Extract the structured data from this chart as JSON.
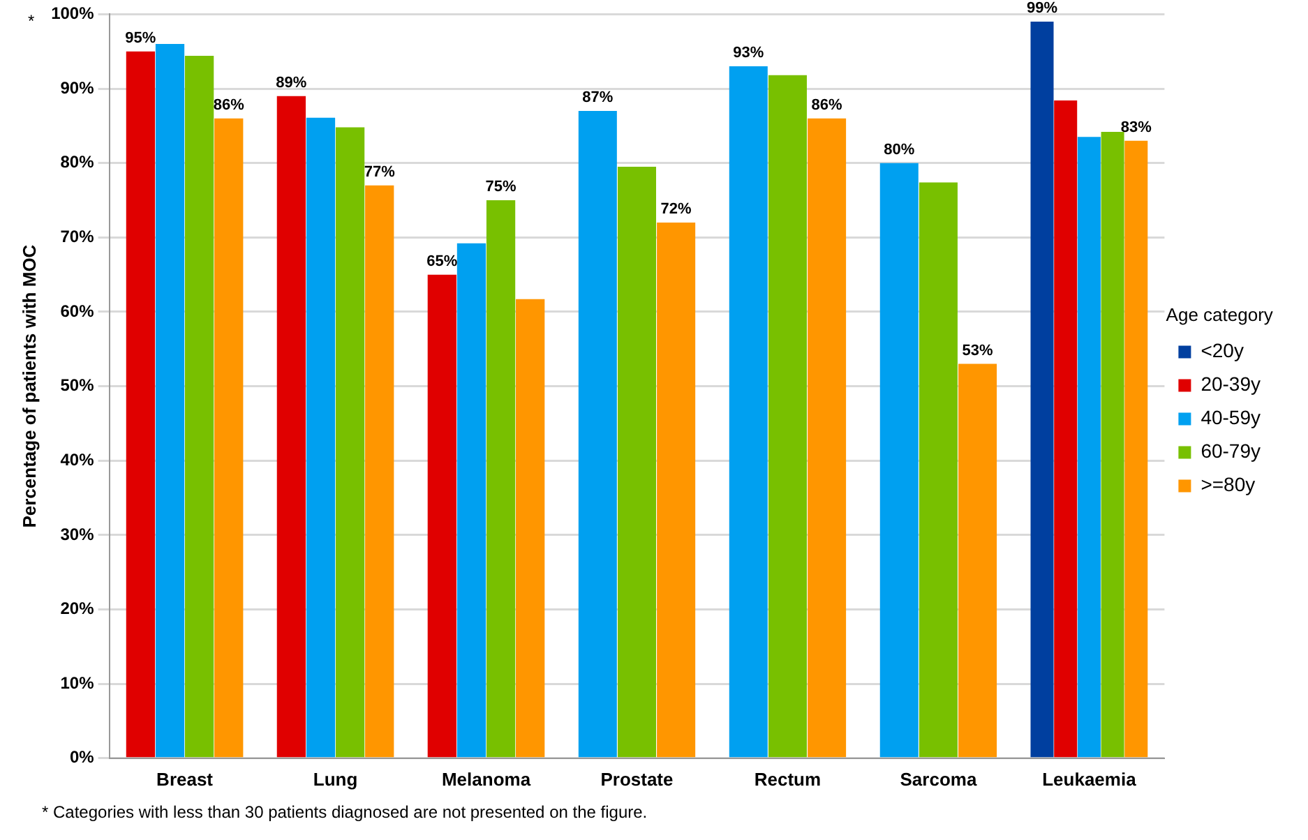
{
  "chart_data": {
    "type": "bar",
    "ylabel": "Percentage of patients with MOC",
    "legend_title": "Age category",
    "categories": [
      "Breast",
      "Lung",
      "Melanoma",
      "Prostate",
      "Rectum",
      "Sarcoma",
      "Leukaemia"
    ],
    "series": [
      {
        "name": "<20y",
        "color": "#003f9f",
        "values": [
          null,
          null,
          null,
          null,
          null,
          null,
          99
        ],
        "value_labels": [
          null,
          null,
          null,
          null,
          null,
          null,
          "99%"
        ]
      },
      {
        "name": "20-39y",
        "color": "#e00000",
        "values": [
          95,
          89,
          65,
          null,
          null,
          null,
          88.4
        ],
        "value_labels": [
          "95%",
          "89%",
          "65%",
          null,
          null,
          null,
          null
        ]
      },
      {
        "name": "40-59y",
        "color": "#00a0f0",
        "values": [
          96,
          86.1,
          69.2,
          87,
          93,
          80,
          83.5
        ],
        "value_labels": [
          null,
          null,
          null,
          "87%",
          "93%",
          "80%",
          null
        ]
      },
      {
        "name": "60-79y",
        "color": "#78c000",
        "values": [
          94.4,
          84.8,
          75,
          79.5,
          91.8,
          77.4,
          84.2
        ],
        "value_labels": [
          null,
          null,
          "75%",
          null,
          null,
          null,
          null
        ]
      },
      {
        "name": ">=80y",
        "color": "#ff9600",
        "values": [
          86,
          77,
          61.7,
          72,
          86,
          53,
          83
        ],
        "value_labels": [
          "86%",
          "77%",
          null,
          "72%",
          "86%",
          "53%",
          "83%"
        ]
      }
    ],
    "ylim": [
      0,
      100
    ],
    "yticks": [
      {
        "value": 0,
        "label": "0%"
      },
      {
        "value": 10,
        "label": "10%"
      },
      {
        "value": 20,
        "label": "20%"
      },
      {
        "value": 30,
        "label": "30%"
      },
      {
        "value": 40,
        "label": "40%"
      },
      {
        "value": 50,
        "label": "50%"
      },
      {
        "value": 60,
        "label": "60%"
      },
      {
        "value": 70,
        "label": "70%"
      },
      {
        "value": 80,
        "label": "80%"
      },
      {
        "value": 90,
        "label": "90%"
      },
      {
        "value": 100,
        "label": "100%"
      }
    ],
    "grid": "y",
    "legend": "right",
    "annotations": [
      "*",
      "* Categories with less than 30 patients diagnosed are not presented on the figure."
    ]
  }
}
